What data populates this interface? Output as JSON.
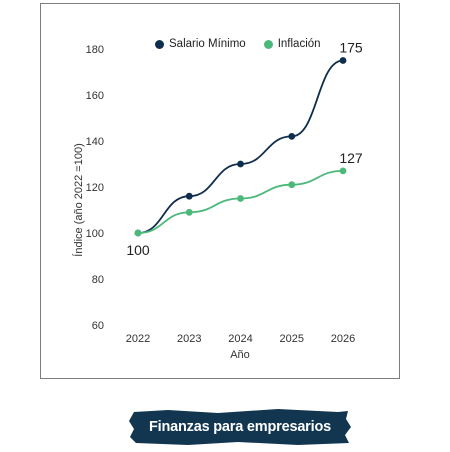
{
  "legend": {
    "salario_label": "Salario Mínimo",
    "inflacion_label": "Inflación"
  },
  "colors": {
    "salario": "#0f2d4c",
    "inflacion": "#4cb97b",
    "banner": "#123650"
  },
  "banner": {
    "text": "Finanzas para empresarios"
  },
  "chart_data": {
    "type": "line",
    "xlabel": "Año",
    "ylabel": "Índice (año 2022 =100)",
    "ylim": [
      50,
      190
    ],
    "yticks": [
      60,
      80,
      100,
      120,
      140,
      160,
      180
    ],
    "x": [
      "2022",
      "2023",
      "2024",
      "2025",
      "2026"
    ],
    "grid": false,
    "legend_position": "top",
    "series": [
      {
        "name": "Salario Mínimo",
        "values": [
          100,
          116,
          130,
          142,
          175
        ]
      },
      {
        "name": "Inflación",
        "values": [
          100,
          109,
          115,
          121,
          127
        ]
      }
    ],
    "annotations": [
      {
        "text": "175",
        "series": 0,
        "index": 4
      },
      {
        "text": "127",
        "series": 1,
        "index": 4
      },
      {
        "text": "100",
        "series": 0,
        "index": 0
      }
    ]
  }
}
